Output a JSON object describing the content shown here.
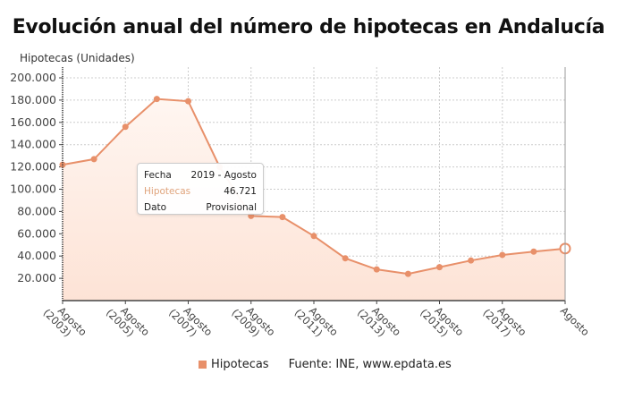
{
  "title": "Evolución anual del número de hipotecas en Andalucía",
  "y_axis_label": "Hipotecas (Unidades)",
  "tooltip": {
    "rows": [
      {
        "key": "Fecha",
        "value": "2019 - Agosto"
      },
      {
        "key": "Hipotecas",
        "value": "46.721"
      },
      {
        "key": "Dato",
        "value": "Provisional"
      }
    ]
  },
  "legend": {
    "series": "Hipotecas",
    "source": "Fuente: INE, www.epdata.es"
  },
  "colors": {
    "line": "#e8906a",
    "fill": "#fde9df",
    "grid": "#cccccc"
  },
  "chart_data": {
    "type": "area",
    "title": "Evolución anual del número de hipotecas en Andalucía",
    "xlabel": "",
    "ylabel": "Hipotecas (Unidades)",
    "ylim": [
      0,
      200000
    ],
    "yticks": [
      "20.000",
      "40.000",
      "60.000",
      "80.000",
      "100.000",
      "120.000",
      "140.000",
      "160.000",
      "180.000",
      "200.000"
    ],
    "xtick_labels": [
      "Agosto (2003)",
      "Agosto (2005)",
      "Agosto (2007)",
      "Agosto (2009)",
      "Agosto (2011)",
      "Agosto (2013)",
      "Agosto (2015)",
      "Agosto (2017)",
      "Agosto"
    ],
    "grid": true,
    "legend_position": "bottom",
    "series": [
      {
        "name": "Hipotecas",
        "x": [
          2003,
          2004,
          2005,
          2006,
          2007,
          2008,
          2009,
          2010,
          2011,
          2012,
          2013,
          2014,
          2015,
          2016,
          2017,
          2018,
          2019
        ],
        "values": [
          122000,
          127000,
          156000,
          181000,
          179000,
          120000,
          76000,
          75000,
          58000,
          38000,
          28000,
          24000,
          30000,
          36000,
          41000,
          44000,
          46721
        ]
      }
    ]
  }
}
